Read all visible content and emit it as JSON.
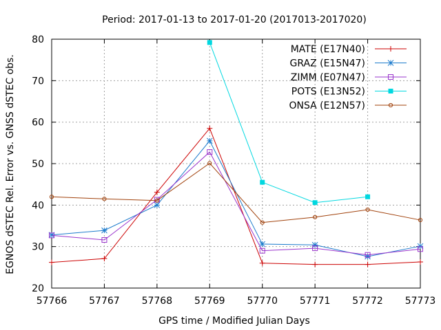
{
  "chart_data": {
    "type": "line",
    "title": "Period: 2017-01-13 to 2017-01-20 (2017013-2017020)",
    "xlabel": "GPS time / Modified Julian Days",
    "ylabel": "EGNOS dSTEC Rel. Error vs. GNSS dSTEC obs.",
    "xlim": [
      57766,
      57773
    ],
    "ylim": [
      20,
      80
    ],
    "xticks": [
      57766,
      57767,
      57768,
      57769,
      57770,
      57771,
      57772,
      57773
    ],
    "yticks": [
      20,
      30,
      40,
      50,
      60,
      70,
      80
    ],
    "grid": true,
    "legend_position": "top-right",
    "series": [
      {
        "name": "MATE (E17N40)",
        "color": "#cc0000",
        "marker": "plus",
        "x": [
          57766,
          57767,
          57768,
          57769,
          57770,
          57771,
          57772,
          57773
        ],
        "values": [
          26.2,
          27.1,
          43.1,
          58.5,
          26.0,
          25.7,
          25.7,
          26.3
        ]
      },
      {
        "name": "GRAZ (E15N47)",
        "color": "#1a7acc",
        "marker": "star",
        "x": [
          57766,
          57767,
          57768,
          57769,
          57770,
          57771,
          57772,
          57773
        ],
        "values": [
          32.8,
          33.9,
          40.0,
          55.5,
          30.6,
          30.4,
          27.6,
          30.1
        ]
      },
      {
        "name": "ZIMM (E07N47)",
        "color": "#9933cc",
        "marker": "square-open",
        "x": [
          57766,
          57767,
          57768,
          57769,
          57770,
          57771,
          57772,
          57773
        ],
        "values": [
          32.7,
          31.6,
          41.3,
          52.8,
          29.0,
          29.6,
          28.0,
          29.4
        ]
      },
      {
        "name": "POTS (E13N52)",
        "color": "#00d8e0",
        "marker": "square-filled",
        "x": [
          57769,
          57770,
          57771,
          57772
        ],
        "values": [
          79.2,
          45.5,
          40.6,
          42.0
        ]
      },
      {
        "name": "ONSA (E12N57)",
        "color": "#a0400a",
        "marker": "circle-open",
        "x": [
          57766,
          57767,
          57768,
          57769,
          57770,
          57771,
          57772,
          57773
        ],
        "values": [
          42.0,
          41.5,
          41.1,
          50.1,
          35.8,
          37.1,
          38.9,
          36.4
        ]
      }
    ]
  }
}
